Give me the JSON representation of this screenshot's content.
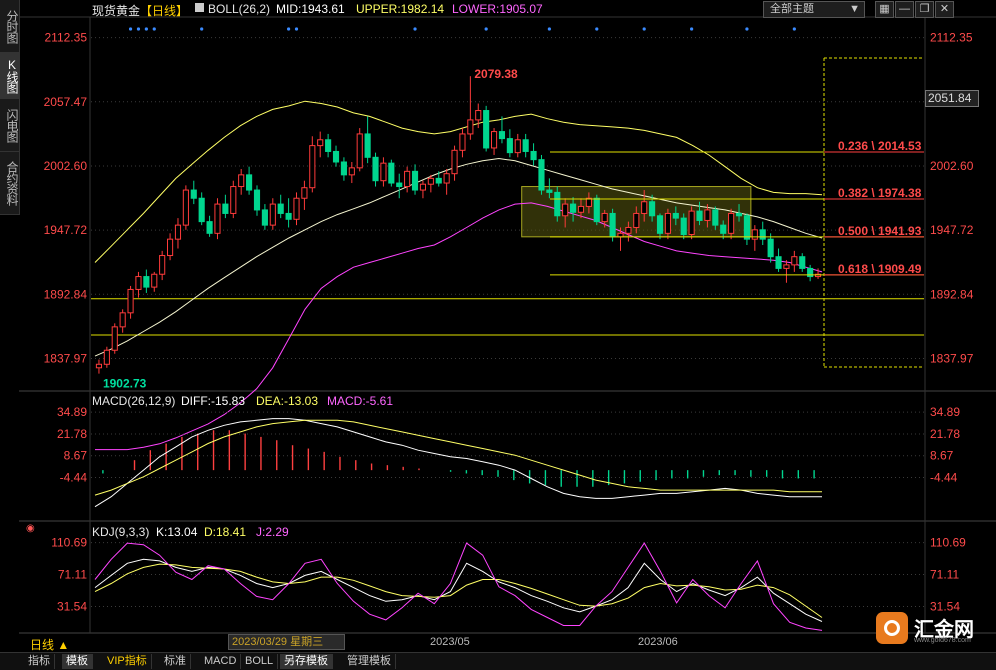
{
  "sidebar": {
    "tabs": [
      {
        "label": "分时图"
      },
      {
        "label": "K线图"
      },
      {
        "label": "闪电图"
      },
      {
        "label": "合约资料"
      }
    ]
  },
  "header": {
    "instrument": "现货黄金",
    "period": "【日线】",
    "indicator_name": "BOLL(26,2)",
    "mid": "MID:1943.61",
    "upper": "UPPER:1982.14",
    "lower": "LOWER:1905.07",
    "scheme_label": "全部主题",
    "colors": {
      "instrument": "#e6e6e6",
      "period": "#ffd000",
      "indicator": "#e6e6e6",
      "mid": "#ffffff",
      "upper": "#ffff66",
      "lower": "#ff66ff"
    }
  },
  "toolbar": {
    "icons": [
      "grid-icon",
      "minimize-icon",
      "restore-icon",
      "close-icon"
    ],
    "glyphs": [
      "▦",
      "—",
      "❐",
      "✕"
    ]
  },
  "axis": {
    "main_ticks": [
      "2112.35",
      "2057.47",
      "2002.60",
      "1947.72",
      "1892.84",
      "1837.97"
    ],
    "current_price": "2051.84",
    "macd_ticks": [
      "34.89",
      "21.78",
      "8.67",
      "-4.44"
    ],
    "kdj_ticks": [
      "110.69",
      "71.11",
      "31.54"
    ]
  },
  "annotations": {
    "high_label": "2079.38",
    "low_label": "1902.73",
    "fib_labels": [
      "0.236 \\ 2014.53",
      "0.382 \\ 1974.38",
      "0.500 \\ 1941.93",
      "0.618 \\ 1909.49"
    ]
  },
  "macd_header": {
    "name": "MACD(26,12,9)",
    "diff": "DIFF:-15.83",
    "dea": "DEA:-13.03",
    "macd": "MACD:-5.61",
    "colors": {
      "name": "#e6e6e6",
      "diff": "#ffffff",
      "dea": "#ffff66",
      "macd": "#ff66ff"
    }
  },
  "kdj_header": {
    "name": "KDJ(9,3,3)",
    "k": "K:13.04",
    "d": "D:18.41",
    "j": "J:2.29",
    "colors": {
      "name": "#e6e6e6",
      "k": "#ffffff",
      "d": "#ffff66",
      "j": "#ff66ff"
    }
  },
  "footer": {
    "day_button": "日线 ▲",
    "date": "2023/03/29 星期三",
    "months": [
      "2023/05",
      "2023/06"
    ]
  },
  "bottom_tabs": [
    {
      "label": "指标",
      "active": false
    },
    {
      "label": "模板",
      "active": true
    },
    {
      "label": "VIP指标",
      "active": false,
      "accent": true
    },
    {
      "label": "标准",
      "active": false
    },
    {
      "label": "MACD",
      "active": false
    },
    {
      "label": "BOLL",
      "active": false
    },
    {
      "label": "另存模板",
      "active": true
    },
    {
      "label": "管理模板",
      "active": false
    }
  ],
  "logo": {
    "text": "汇金网",
    "url": "www.gold678.com"
  },
  "chart_data": {
    "type": "candlestick",
    "timeframe": "daily",
    "ylim": [
      1811,
      2130
    ],
    "up_color": "#ff3b3b",
    "down_color": "#00d68f",
    "ohlc": [
      [
        1830,
        1837,
        1825,
        1833
      ],
      [
        1833,
        1848,
        1830,
        1845
      ],
      [
        1845,
        1868,
        1842,
        1865
      ],
      [
        1865,
        1880,
        1860,
        1877
      ],
      [
        1877,
        1900,
        1872,
        1897
      ],
      [
        1897,
        1912,
        1890,
        1908
      ],
      [
        1908,
        1914,
        1894,
        1899
      ],
      [
        1899,
        1912,
        1895,
        1910
      ],
      [
        1910,
        1930,
        1905,
        1926
      ],
      [
        1926,
        1945,
        1922,
        1940
      ],
      [
        1940,
        1958,
        1932,
        1952
      ],
      [
        1952,
        1986,
        1948,
        1982
      ],
      [
        1982,
        1990,
        1970,
        1975
      ],
      [
        1975,
        1980,
        1952,
        1955
      ],
      [
        1955,
        1960,
        1942,
        1945
      ],
      [
        1945,
        1975,
        1940,
        1970
      ],
      [
        1970,
        1978,
        1958,
        1962
      ],
      [
        1962,
        1990,
        1958,
        1985
      ],
      [
        1985,
        2000,
        1978,
        1995
      ],
      [
        1995,
        2002,
        1978,
        1982
      ],
      [
        1982,
        1986,
        1960,
        1965
      ],
      [
        1965,
        1970,
        1948,
        1952
      ],
      [
        1952,
        1975,
        1948,
        1970
      ],
      [
        1970,
        1978,
        1958,
        1962
      ],
      [
        1962,
        1975,
        1950,
        1957
      ],
      [
        1957,
        1980,
        1952,
        1975
      ],
      [
        1975,
        1990,
        1965,
        1984
      ],
      [
        1984,
        2028,
        1980,
        2020
      ],
      [
        2020,
        2032,
        2010,
        2025
      ],
      [
        2025,
        2030,
        2010,
        2015
      ],
      [
        2015,
        2020,
        2002,
        2006
      ],
      [
        2006,
        2010,
        1990,
        1995
      ],
      [
        1995,
        2006,
        1988,
        2001
      ],
      [
        2001,
        2035,
        1998,
        2030
      ],
      [
        2030,
        2045,
        2005,
        2010
      ],
      [
        2010,
        2014,
        1985,
        1990
      ],
      [
        1990,
        2010,
        1985,
        2005
      ],
      [
        2005,
        2008,
        1985,
        1988
      ],
      [
        1988,
        1996,
        1975,
        1985
      ],
      [
        1985,
        2002,
        1980,
        1998
      ],
      [
        1998,
        2004,
        1978,
        1982
      ],
      [
        1982,
        1990,
        1975,
        1987
      ],
      [
        1987,
        1995,
        1980,
        1992
      ],
      [
        1992,
        1998,
        1985,
        1988
      ],
      [
        1988,
        2000,
        1978,
        1996
      ],
      [
        1996,
        2020,
        1990,
        2016
      ],
      [
        2016,
        2035,
        2010,
        2030
      ],
      [
        2030,
        2079.38,
        2025,
        2042
      ],
      [
        2042,
        2056,
        2035,
        2050
      ],
      [
        2050,
        2054,
        2015,
        2018
      ],
      [
        2018,
        2035,
        2012,
        2032
      ],
      [
        2032,
        2045,
        2022,
        2026
      ],
      [
        2026,
        2034,
        2010,
        2014
      ],
      [
        2014,
        2030,
        2010,
        2025
      ],
      [
        2025,
        2030,
        2010,
        2015
      ],
      [
        2015,
        2022,
        2003,
        2008
      ],
      [
        2008,
        2012,
        1978,
        1982
      ],
      [
        1982,
        1992,
        1975,
        1980
      ],
      [
        1980,
        1985,
        1955,
        1960
      ],
      [
        1960,
        1975,
        1950,
        1970
      ],
      [
        1970,
        1976,
        1955,
        1963
      ],
      [
        1963,
        1975,
        1958,
        1968
      ],
      [
        1968,
        1980,
        1962,
        1975
      ],
      [
        1975,
        1978,
        1952,
        1955
      ],
      [
        1955,
        1965,
        1950,
        1962
      ],
      [
        1962,
        1966,
        1938,
        1942
      ],
      [
        1942,
        1950,
        1930,
        1945
      ],
      [
        1945,
        1955,
        1938,
        1950
      ],
      [
        1950,
        1968,
        1945,
        1962
      ],
      [
        1962,
        1982,
        1955,
        1972
      ],
      [
        1972,
        1978,
        1955,
        1960
      ],
      [
        1960,
        1962,
        1940,
        1945
      ],
      [
        1945,
        1966,
        1940,
        1962
      ],
      [
        1962,
        1968,
        1952,
        1958
      ],
      [
        1958,
        1962,
        1940,
        1944
      ],
      [
        1944,
        1968,
        1940,
        1964
      ],
      [
        1964,
        1972,
        1952,
        1956
      ],
      [
        1956,
        1970,
        1950,
        1965
      ],
      [
        1965,
        1968,
        1948,
        1952
      ],
      [
        1952,
        1956,
        1940,
        1945
      ],
      [
        1945,
        1966,
        1940,
        1962
      ],
      [
        1962,
        1970,
        1955,
        1960
      ],
      [
        1960,
        1962,
        1935,
        1940
      ],
      [
        1940,
        1952,
        1930,
        1948
      ],
      [
        1948,
        1955,
        1935,
        1940
      ],
      [
        1940,
        1945,
        1920,
        1925
      ],
      [
        1925,
        1932,
        1912,
        1915
      ],
      [
        1915,
        1922,
        1902.73,
        1918
      ],
      [
        1918,
        1930,
        1912,
        1925
      ],
      [
        1925,
        1928,
        1912,
        1915
      ],
      [
        1915,
        1918,
        1904,
        1908
      ],
      [
        1908,
        1915,
        1906,
        1910
      ]
    ],
    "bollinger": {
      "upper": [
        1920,
        1934,
        1948,
        1962,
        1977,
        1992,
        2004,
        2016,
        2027,
        2037,
        2045,
        2051,
        2054,
        2058,
        2056,
        2053,
        2048,
        2045,
        2040,
        2035,
        2032,
        2030,
        2032,
        2036,
        2040,
        2042,
        2045,
        2047,
        2043,
        2040,
        2038,
        2037,
        2036,
        2035,
        2033,
        2030,
        2027,
        2020,
        2012,
        2002,
        1992,
        1984,
        1980,
        1979,
        1979,
        1978
      ],
      "mid": [
        1840,
        1846,
        1853,
        1861,
        1869,
        1878,
        1888,
        1898,
        1907,
        1916,
        1925,
        1933,
        1941,
        1948,
        1955,
        1961,
        1966,
        1971,
        1977,
        1983,
        1989,
        1995,
        2000,
        2004,
        2007,
        2009,
        2007,
        2003,
        1999,
        1995,
        1991,
        1987,
        1983,
        1980,
        1977,
        1974,
        1971,
        1969,
        1967,
        1965,
        1962,
        1959,
        1955,
        1950,
        1945,
        1941
      ],
      "lower": [
        1760,
        1760,
        1760,
        1762,
        1765,
        1770,
        1776,
        1782,
        1790,
        1800,
        1812,
        1830,
        1855,
        1880,
        1898,
        1908,
        1916,
        1920,
        1924,
        1928,
        1932,
        1935,
        1942,
        1950,
        1958,
        1965,
        1970,
        1971,
        1968,
        1964,
        1960,
        1956,
        1950,
        1944,
        1938,
        1934,
        1930,
        1928,
        1926,
        1925,
        1924,
        1923,
        1922,
        1920,
        1916,
        1912
      ]
    },
    "horizontal_levels": [
      1889,
      1858
    ],
    "fib_levels": [
      2014.53,
      1974.38,
      1941.93,
      1909.49
    ],
    "box": {
      "price_high": 1985,
      "price_low": 1942
    },
    "macd": {
      "ylim": [
        -30,
        41
      ],
      "diff": [
        -22,
        -16,
        -8,
        0,
        8,
        14,
        20,
        24,
        27,
        29,
        30,
        31,
        31,
        30,
        28,
        26,
        23,
        20,
        17,
        15,
        12,
        10,
        8,
        7,
        5,
        3,
        0,
        -5,
        -10,
        -14,
        -16,
        -17,
        -17,
        -16,
        -15,
        -14,
        -14,
        -13,
        -12,
        -11,
        -12,
        -14,
        -15,
        -16,
        -16,
        -16
      ],
      "dea": [
        -15,
        -12,
        -8,
        -4,
        1,
        6,
        11,
        16,
        20,
        23,
        26,
        28,
        29,
        30,
        30,
        30,
        29,
        27,
        25,
        23,
        21,
        19,
        17,
        15,
        13,
        11,
        9,
        6,
        3,
        0,
        -3,
        -6,
        -8,
        -10,
        -11,
        -12,
        -12,
        -12,
        -12,
        -12,
        -12,
        -12,
        -12,
        -13,
        -13,
        -13
      ],
      "hist": [
        -2,
        0,
        6,
        12,
        16,
        20,
        22,
        24,
        24,
        22,
        20,
        18,
        15,
        13,
        11,
        8,
        6,
        4,
        3,
        2,
        1,
        0,
        -1,
        -2,
        -3,
        -4,
        -6,
        -8,
        -9,
        -10,
        -10,
        -10,
        -9,
        -8,
        -7,
        -6,
        -5,
        -5,
        -4,
        -3,
        -3,
        -4,
        -4,
        -5,
        -5,
        -5
      ]
    },
    "kdj": {
      "ylim": [
        0,
        125
      ],
      "k": [
        55,
        70,
        85,
        90,
        88,
        80,
        75,
        80,
        78,
        70,
        60,
        55,
        60,
        70,
        75,
        65,
        55,
        45,
        38,
        40,
        45,
        40,
        50,
        85,
        75,
        62,
        55,
        45,
        38,
        30,
        25,
        32,
        40,
        55,
        85,
        65,
        50,
        60,
        52,
        45,
        55,
        68,
        48,
        35,
        22,
        13
      ],
      "d": [
        50,
        60,
        72,
        80,
        84,
        83,
        80,
        79,
        78,
        75,
        68,
        62,
        60,
        62,
        68,
        68,
        64,
        57,
        50,
        45,
        44,
        43,
        45,
        58,
        65,
        65,
        60,
        54,
        47,
        40,
        33,
        32,
        35,
        42,
        55,
        60,
        57,
        58,
        56,
        52,
        53,
        58,
        55,
        46,
        32,
        18
      ],
      "j": [
        65,
        90,
        110,
        108,
        95,
        74,
        65,
        82,
        78,
        60,
        44,
        40,
        60,
        85,
        90,
        60,
        38,
        22,
        15,
        30,
        48,
        35,
        60,
        110,
        95,
        56,
        45,
        28,
        18,
        8,
        8,
        32,
        50,
        80,
        110,
        75,
        36,
        65,
        45,
        30,
        60,
        88,
        35,
        12,
        5,
        2
      ]
    }
  }
}
